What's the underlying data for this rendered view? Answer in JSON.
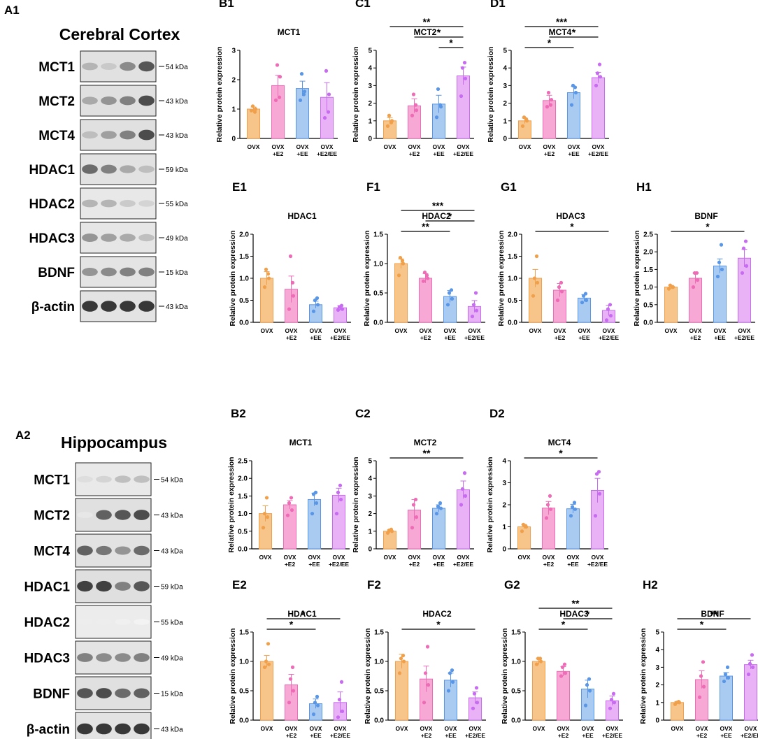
{
  "colors": {
    "groups": [
      "#f7c48a",
      "#f7a8d4",
      "#a9cbf2",
      "#eab2f6"
    ],
    "groups_edge": [
      "#f0a04a",
      "#ee6bb6",
      "#5a96e6",
      "#c76cf0"
    ]
  },
  "categories": [
    "OVX",
    "OVX\n+E2",
    "OVX\n+EE",
    "OVX\n+E2/EE"
  ],
  "kda_unit": "kDa",
  "blots": [
    {
      "label": "A1",
      "title": "Cerebral Cortex",
      "bands": [
        {
          "name": "MCT1",
          "kda": 54,
          "intensity": [
            0.35,
            0.25,
            0.55,
            0.8
          ]
        },
        {
          "name": "MCT2",
          "kda": 43,
          "intensity": [
            0.4,
            0.5,
            0.6,
            0.85
          ]
        },
        {
          "name": "MCT4",
          "kda": 43,
          "intensity": [
            0.3,
            0.45,
            0.6,
            0.85
          ]
        },
        {
          "name": "HDAC1",
          "kda": 59,
          "intensity": [
            0.7,
            0.6,
            0.4,
            0.3
          ]
        },
        {
          "name": "HDAC2",
          "kda": 55,
          "intensity": [
            0.35,
            0.35,
            0.25,
            0.2
          ]
        },
        {
          "name": "HDAC3",
          "kda": 49,
          "intensity": [
            0.5,
            0.45,
            0.4,
            0.3
          ]
        },
        {
          "name": "BDNF",
          "kda": 15,
          "intensity": [
            0.5,
            0.55,
            0.6,
            0.6
          ]
        },
        {
          "name": "β-actin",
          "kda": 43,
          "intensity": [
            0.95,
            0.95,
            0.95,
            0.95
          ]
        }
      ]
    },
    {
      "label": "A2",
      "title": "Hippocampus",
      "bands": [
        {
          "name": "MCT1",
          "kda": 54,
          "intensity": [
            0.15,
            0.2,
            0.3,
            0.3
          ]
        },
        {
          "name": "MCT2",
          "kda": 43,
          "intensity": [
            0.1,
            0.75,
            0.8,
            0.85
          ]
        },
        {
          "name": "MCT4",
          "kda": 43,
          "intensity": [
            0.75,
            0.65,
            0.5,
            0.7
          ]
        },
        {
          "name": "HDAC1",
          "kda": 59,
          "intensity": [
            0.9,
            0.9,
            0.6,
            0.8
          ]
        },
        {
          "name": "HDAC2",
          "kda": 55,
          "intensity": [
            0.08,
            0.08,
            0.06,
            0.05
          ]
        },
        {
          "name": "HDAC3",
          "kda": 49,
          "intensity": [
            0.6,
            0.55,
            0.55,
            0.6
          ]
        },
        {
          "name": "BDNF",
          "kda": 15,
          "intensity": [
            0.8,
            0.85,
            0.7,
            0.75
          ]
        },
        {
          "name": "β-actin",
          "kda": 43,
          "intensity": [
            0.95,
            0.95,
            0.95,
            0.95
          ]
        }
      ]
    }
  ],
  "chart_data": [
    {
      "label": "B1",
      "type": "bar",
      "title": "MCT1",
      "ylabel": "Relative protein expression",
      "ylim": [
        0,
        3
      ],
      "yticks": [
        0,
        1,
        2,
        3
      ],
      "ytick_labels": [
        "0",
        "1",
        "2",
        "3"
      ],
      "values": [
        1.0,
        1.8,
        1.7,
        1.4
      ],
      "errors": [
        0.07,
        0.35,
        0.25,
        0.5
      ],
      "points": [
        [
          0.95,
          1.0,
          1.1,
          0.9
        ],
        [
          1.3,
          2.1,
          2.5,
          1.4
        ],
        [
          1.3,
          1.6,
          2.2,
          1.5
        ],
        [
          0.7,
          1.5,
          2.3,
          0.9
        ]
      ],
      "sig": []
    },
    {
      "label": "C1",
      "type": "bar",
      "title": "MCT2",
      "ylabel": "Relative protein expression",
      "ylim": [
        0,
        5
      ],
      "yticks": [
        0,
        1,
        2,
        3,
        4,
        5
      ],
      "ytick_labels": [
        "0",
        "1",
        "2",
        "3",
        "4",
        "5"
      ],
      "values": [
        1.0,
        1.85,
        1.95,
        3.55
      ],
      "errors": [
        0.18,
        0.4,
        0.5,
        0.5
      ],
      "points": [
        [
          0.7,
          1.0,
          1.3,
          0.9
        ],
        [
          1.3,
          1.6,
          2.5,
          1.9
        ],
        [
          1.2,
          1.8,
          2.8,
          1.9
        ],
        [
          2.4,
          3.4,
          4.0,
          4.3
        ]
      ],
      "sig": [
        {
          "from": 0,
          "to": 3,
          "label": "**"
        },
        {
          "from": 1,
          "to": 3,
          "label": "*"
        },
        {
          "from": 2,
          "to": 3,
          "label": "*"
        }
      ]
    },
    {
      "label": "D1",
      "type": "bar",
      "title": "MCT4",
      "ylabel": "Relative protein expression",
      "ylim": [
        0,
        5
      ],
      "yticks": [
        0,
        1,
        2,
        3,
        4,
        5
      ],
      "ytick_labels": [
        "0",
        "1",
        "2",
        "3",
        "4",
        "5"
      ],
      "values": [
        1.0,
        2.15,
        2.6,
        3.45
      ],
      "errors": [
        0.15,
        0.3,
        0.35,
        0.3
      ],
      "points": [
        [
          0.7,
          1.0,
          1.2,
          1.1
        ],
        [
          1.8,
          2.2,
          2.6,
          1.9
        ],
        [
          1.9,
          2.6,
          3.0,
          2.9
        ],
        [
          3.0,
          3.5,
          3.7,
          4.2
        ]
      ],
      "sig": [
        {
          "from": 0,
          "to": 3,
          "label": "***"
        },
        {
          "from": 1,
          "to": 3,
          "label": "*"
        },
        {
          "from": 0,
          "to": 2,
          "label": "*"
        }
      ]
    },
    {
      "label": "E1",
      "type": "bar",
      "title": "HDAC1",
      "ylabel": "Relative protein expression",
      "ylim": [
        0,
        2
      ],
      "yticks": [
        0,
        0.5,
        1.0,
        1.5,
        2.0
      ],
      "ytick_labels": [
        "0.0",
        "0.5",
        "1.0",
        "1.5",
        "2.0"
      ],
      "values": [
        1.0,
        0.75,
        0.4,
        0.33
      ],
      "errors": [
        0.15,
        0.3,
        0.08,
        0.05
      ],
      "points": [
        [
          0.8,
          1.0,
          1.2,
          1.1
        ],
        [
          0.3,
          0.6,
          1.5,
          0.9
        ],
        [
          0.25,
          0.4,
          0.5,
          0.55
        ],
        [
          0.28,
          0.3,
          0.35,
          0.38
        ]
      ],
      "sig": []
    },
    {
      "label": "F1",
      "type": "bar",
      "title": "HDAC2",
      "ylabel": "Relative protein expression",
      "ylim": [
        0,
        1.5
      ],
      "yticks": [
        0,
        0.5,
        1.0,
        1.5
      ],
      "ytick_labels": [
        "0.0",
        "0.5",
        "1.0",
        "1.5"
      ],
      "values": [
        1.0,
        0.75,
        0.44,
        0.27
      ],
      "errors": [
        0.08,
        0.08,
        0.1,
        0.1
      ],
      "points": [
        [
          0.8,
          1.0,
          1.1,
          1.05
        ],
        [
          0.7,
          0.75,
          0.85,
          0.8
        ],
        [
          0.3,
          0.4,
          0.5,
          0.55
        ],
        [
          0.1,
          0.2,
          0.3,
          0.5
        ]
      ],
      "sig": [
        {
          "from": 0,
          "to": 3,
          "label": "***"
        },
        {
          "from": 1,
          "to": 3,
          "label": "*"
        },
        {
          "from": 0,
          "to": 2,
          "label": "**"
        }
      ]
    },
    {
      "label": "G1",
      "type": "bar",
      "title": "HDAC3",
      "ylabel": "Relative protein expression",
      "ylim": [
        0,
        2
      ],
      "yticks": [
        0,
        0.5,
        1.0,
        1.5,
        2.0
      ],
      "ytick_labels": [
        "0.0",
        "0.5",
        "1.0",
        "1.5",
        "2.0"
      ],
      "values": [
        1.0,
        0.73,
        0.55,
        0.27
      ],
      "errors": [
        0.2,
        0.15,
        0.08,
        0.12
      ],
      "points": [
        [
          0.6,
          0.9,
          1.0,
          1.5
        ],
        [
          0.5,
          0.7,
          0.8,
          0.9
        ],
        [
          0.45,
          0.5,
          0.6,
          0.65
        ],
        [
          0.05,
          0.15,
          0.3,
          0.4
        ]
      ],
      "sig": [
        {
          "from": 0,
          "to": 3,
          "label": "*"
        }
      ]
    },
    {
      "label": "H1",
      "type": "bar",
      "title": "BDNF",
      "ylabel": "Relative protein expression",
      "ylim": [
        0,
        2.5
      ],
      "yticks": [
        0,
        0.5,
        1.0,
        1.5,
        2.0,
        2.5
      ],
      "ytick_labels": [
        "0.0",
        "0.5",
        "1.0",
        "1.5",
        "2.0",
        "2.5"
      ],
      "values": [
        1.0,
        1.25,
        1.6,
        1.82
      ],
      "errors": [
        0.05,
        0.15,
        0.2,
        0.25
      ],
      "points": [
        [
          0.95,
          1.0,
          1.05,
          1.0
        ],
        [
          1.0,
          1.2,
          1.4,
          1.4
        ],
        [
          1.3,
          1.5,
          1.7,
          2.2
        ],
        [
          1.4,
          1.6,
          2.1,
          2.3
        ]
      ],
      "sig": [
        {
          "from": 0,
          "to": 3,
          "label": "*"
        }
      ]
    },
    {
      "label": "B2",
      "type": "bar",
      "title": "MCT1",
      "ylabel": "Relative protein expression",
      "ylim": [
        0,
        2.5
      ],
      "yticks": [
        0,
        0.5,
        1.0,
        1.5,
        2.0,
        2.5
      ],
      "ytick_labels": [
        "0.0",
        "0.5",
        "1.0",
        "1.5",
        "2.0",
        "2.5"
      ],
      "values": [
        1.0,
        1.25,
        1.4,
        1.52
      ],
      "errors": [
        0.22,
        0.12,
        0.18,
        0.2
      ],
      "points": [
        [
          0.6,
          0.9,
          1.0,
          1.45
        ],
        [
          0.95,
          1.1,
          1.3,
          1.45
        ],
        [
          1.0,
          1.3,
          1.55,
          1.6
        ],
        [
          1.0,
          1.4,
          1.6,
          1.8
        ]
      ],
      "sig": []
    },
    {
      "label": "C2",
      "type": "bar",
      "title": "MCT2",
      "ylabel": "Relative protein expression",
      "ylim": [
        0,
        5
      ],
      "yticks": [
        0,
        1,
        2,
        3,
        4,
        5
      ],
      "ytick_labels": [
        "0",
        "1",
        "2",
        "3",
        "4",
        "5"
      ],
      "values": [
        1.0,
        2.2,
        2.3,
        3.35
      ],
      "errors": [
        0.08,
        0.6,
        0.2,
        0.5
      ],
      "points": [
        [
          0.9,
          1.0,
          1.05,
          1.1
        ],
        [
          1.2,
          1.8,
          2.5,
          2.8
        ],
        [
          2.0,
          2.3,
          2.4,
          2.6
        ],
        [
          2.5,
          3.0,
          3.4,
          4.3
        ]
      ],
      "sig": [
        {
          "from": 0,
          "to": 3,
          "label": "**"
        }
      ]
    },
    {
      "label": "D2",
      "type": "bar",
      "title": "MCT4",
      "ylabel": "Relative protein expression",
      "ylim": [
        0,
        4
      ],
      "yticks": [
        0,
        1,
        2,
        3,
        4
      ],
      "ytick_labels": [
        "0",
        "1",
        "2",
        "3",
        "4"
      ],
      "values": [
        1.0,
        1.85,
        1.82,
        2.65
      ],
      "errors": [
        0.1,
        0.3,
        0.2,
        0.55
      ],
      "points": [
        [
          0.8,
          1.0,
          1.1,
          1.05
        ],
        [
          1.4,
          1.8,
          2.0,
          2.4
        ],
        [
          1.5,
          1.8,
          1.9,
          2.1
        ],
        [
          1.5,
          2.5,
          3.4,
          3.5
        ]
      ],
      "sig": [
        {
          "from": 0,
          "to": 3,
          "label": "*"
        }
      ]
    },
    {
      "label": "E2",
      "type": "bar",
      "title": "HDAC1",
      "ylabel": "Relative protein expression",
      "ylim": [
        0,
        1.5
      ],
      "yticks": [
        0,
        0.5,
        1.0,
        1.5
      ],
      "ytick_labels": [
        "0.0",
        "0.5",
        "1.0",
        "1.5"
      ],
      "values": [
        1.0,
        0.6,
        0.28,
        0.3
      ],
      "errors": [
        0.1,
        0.18,
        0.08,
        0.18
      ],
      "points": [
        [
          0.9,
          0.95,
          1.0,
          1.3
        ],
        [
          0.3,
          0.5,
          0.7,
          0.9
        ],
        [
          0.1,
          0.25,
          0.3,
          0.4
        ],
        [
          0.05,
          0.15,
          0.35,
          0.65
        ]
      ],
      "sig": [
        {
          "from": 0,
          "to": 3,
          "label": "*"
        },
        {
          "from": 0,
          "to": 2,
          "label": "*"
        }
      ]
    },
    {
      "label": "F2",
      "type": "bar",
      "title": "HDAC2",
      "ylabel": "Relative protein expression",
      "ylim": [
        0,
        1.5
      ],
      "yticks": [
        0,
        0.5,
        1.0,
        1.5
      ],
      "ytick_labels": [
        "0.0",
        "0.5",
        "1.0",
        "1.5"
      ],
      "values": [
        1.0,
        0.7,
        0.68,
        0.38
      ],
      "errors": [
        0.12,
        0.22,
        0.12,
        0.1
      ],
      "points": [
        [
          0.8,
          1.0,
          1.05,
          1.1
        ],
        [
          0.3,
          0.6,
          0.8,
          1.25
        ],
        [
          0.5,
          0.65,
          0.8,
          0.85
        ],
        [
          0.2,
          0.3,
          0.45,
          0.55
        ]
      ],
      "sig": [
        {
          "from": 0,
          "to": 3,
          "label": "*"
        }
      ]
    },
    {
      "label": "G2",
      "type": "bar",
      "title": "HDAC3",
      "ylabel": "Relative protein expression",
      "ylim": [
        0,
        1.5
      ],
      "yticks": [
        0,
        0.5,
        1.0,
        1.5
      ],
      "ytick_labels": [
        "0.0",
        "0.5",
        "1.0",
        "1.5"
      ],
      "values": [
        1.0,
        0.83,
        0.53,
        0.33
      ],
      "errors": [
        0.05,
        0.08,
        0.15,
        0.08
      ],
      "points": [
        [
          0.95,
          1.0,
          1.05,
          1.05
        ],
        [
          0.75,
          0.8,
          0.9,
          0.95
        ],
        [
          0.25,
          0.5,
          0.6,
          0.7
        ],
        [
          0.2,
          0.3,
          0.35,
          0.45
        ]
      ],
      "sig": [
        {
          "from": 0,
          "to": 3,
          "label": "**"
        },
        {
          "from": 1,
          "to": 3,
          "label": "*"
        },
        {
          "from": 0,
          "to": 2,
          "label": "*"
        }
      ]
    },
    {
      "label": "H2",
      "type": "bar",
      "title": "BDNF",
      "ylabel": "Relative protein expression",
      "ylim": [
        0,
        5
      ],
      "yticks": [
        0,
        1,
        2,
        3,
        4,
        5
      ],
      "ytick_labels": [
        "0",
        "1",
        "2",
        "3",
        "4",
        "5"
      ],
      "values": [
        1.0,
        2.3,
        2.5,
        3.15
      ],
      "errors": [
        0.05,
        0.5,
        0.2,
        0.25
      ],
      "points": [
        [
          0.9,
          1.0,
          1.0,
          1.05
        ],
        [
          1.3,
          1.9,
          2.5,
          3.3
        ],
        [
          2.2,
          2.4,
          2.6,
          3.0
        ],
        [
          2.6,
          3.0,
          3.2,
          3.7
        ]
      ],
      "sig": [
        {
          "from": 0,
          "to": 3,
          "label": "**"
        },
        {
          "from": 0,
          "to": 2,
          "label": "*"
        }
      ]
    }
  ]
}
